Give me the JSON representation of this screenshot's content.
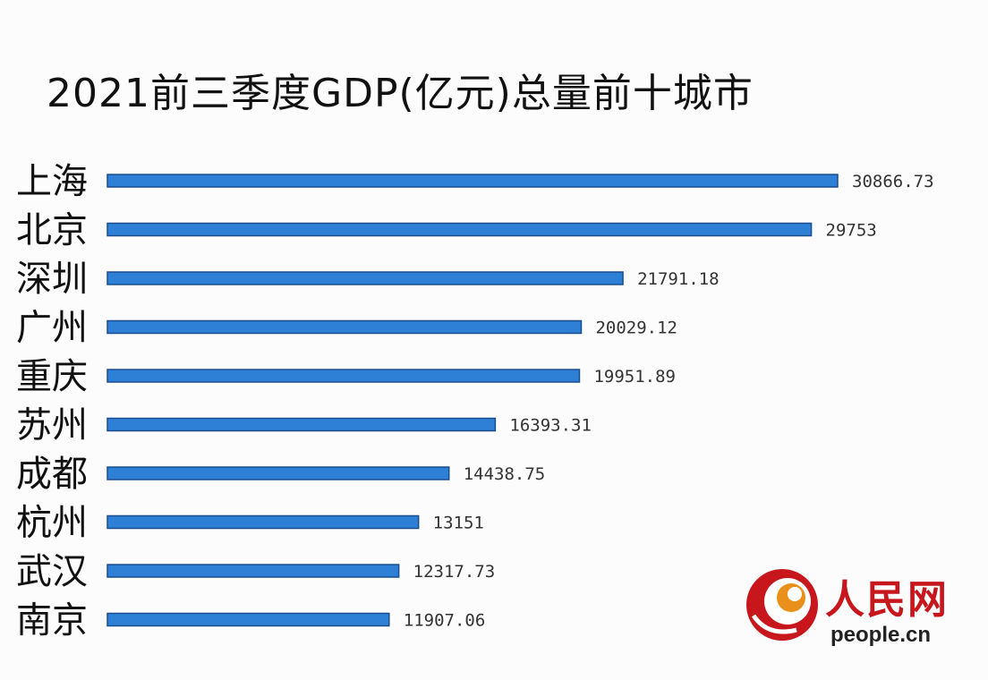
{
  "chart_data": {
    "type": "bar",
    "orientation": "horizontal",
    "title": "2021前三季度GDP(亿元)总量前十城市",
    "categories": [
      "上海",
      "北京",
      "深圳",
      "广州",
      "重庆",
      "苏州",
      "成都",
      "杭州",
      "武汉",
      "南京"
    ],
    "values": [
      30866.73,
      29753,
      21791.18,
      20029.12,
      19951.89,
      16393.31,
      14438.75,
      13151,
      12317.73,
      11907.06
    ],
    "value_labels": [
      "30866.73",
      "29753",
      "21791.18",
      "20029.12",
      "19951.89",
      "16393.31",
      "14438.75",
      "13151",
      "12317.73",
      "11907.06"
    ],
    "xlim": [
      0,
      30866.73
    ],
    "xlabel": "",
    "ylabel": "",
    "grid": false,
    "legend": "none",
    "bar_color": "#2e7fd6",
    "bar_edge_color": "#1a4f8f"
  },
  "watermark": {
    "brand_name": "人民网",
    "domain": "people.cn",
    "brand_color": "#c8161d",
    "logo_icon": "people-daily-swirl-icon"
  }
}
